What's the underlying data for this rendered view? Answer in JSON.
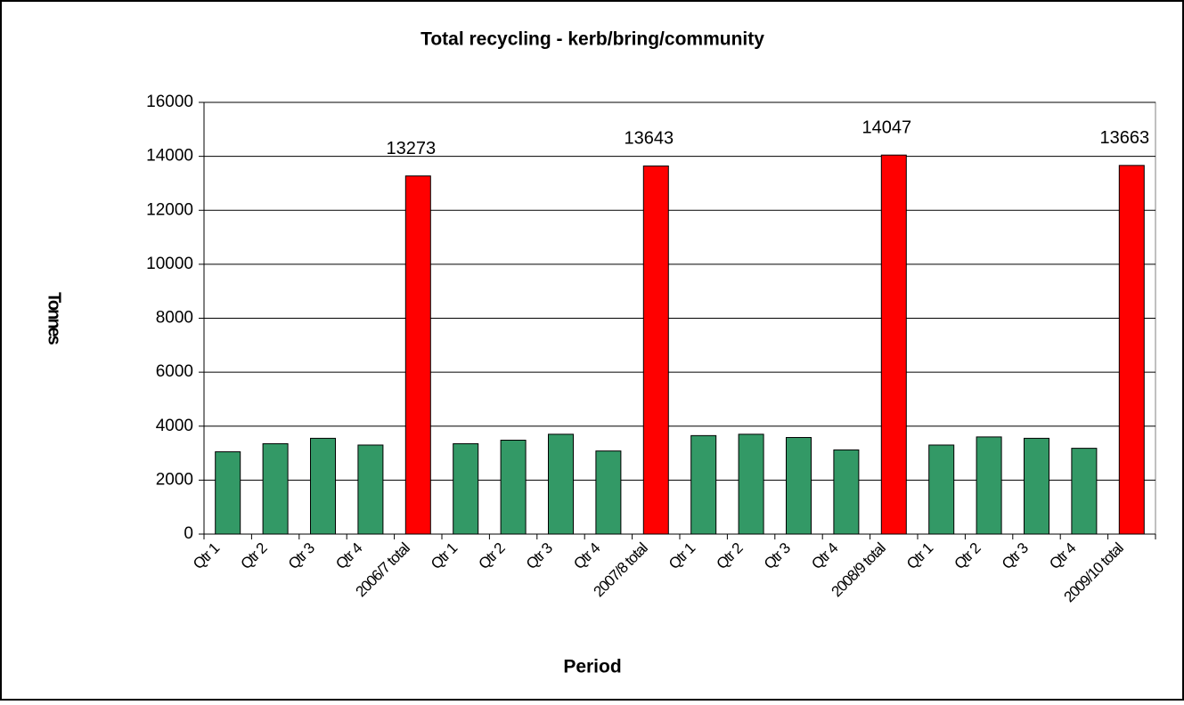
{
  "chart_data": {
    "type": "bar",
    "title": "Total recycling - kerb/bring/community",
    "x_label": "Period",
    "y_label": "Tonnes",
    "categories": [
      "Qtr 1",
      "Qtr 2",
      "Qtr 3",
      "Qtr 4",
      "2006/7 total",
      "Qtr 1",
      "Qtr 2",
      "Qtr 3",
      "Qtr 4",
      "2007/8 total",
      "Qtr 1",
      "Qtr 2",
      "Qtr 3",
      "Qtr 4",
      "2008/9 total",
      "Qtr 1",
      "Qtr 2",
      "Qtr 3",
      "Qtr 4",
      "2009/10 total"
    ],
    "values": [
      3050,
      3350,
      3550,
      3300,
      13273,
      3350,
      3480,
      3700,
      3080,
      13643,
      3650,
      3700,
      3580,
      3120,
      14047,
      3300,
      3600,
      3550,
      3180,
      13663
    ],
    "value_labels": [
      null,
      null,
      null,
      null,
      "13273",
      null,
      null,
      null,
      null,
      "13643",
      null,
      null,
      null,
      null,
      "14047",
      null,
      null,
      null,
      null,
      "13663"
    ],
    "colors": [
      "#339966",
      "#339966",
      "#339966",
      "#339966",
      "#ff0000",
      "#339966",
      "#339966",
      "#339966",
      "#339966",
      "#ff0000",
      "#339966",
      "#339966",
      "#339966",
      "#339966",
      "#ff0000",
      "#339966",
      "#339966",
      "#339966",
      "#339966",
      "#ff0000"
    ],
    "ylim": [
      0,
      16000
    ],
    "yticks": [
      0,
      2000,
      4000,
      6000,
      8000,
      10000,
      12000,
      14000,
      16000
    ],
    "grid": true
  }
}
